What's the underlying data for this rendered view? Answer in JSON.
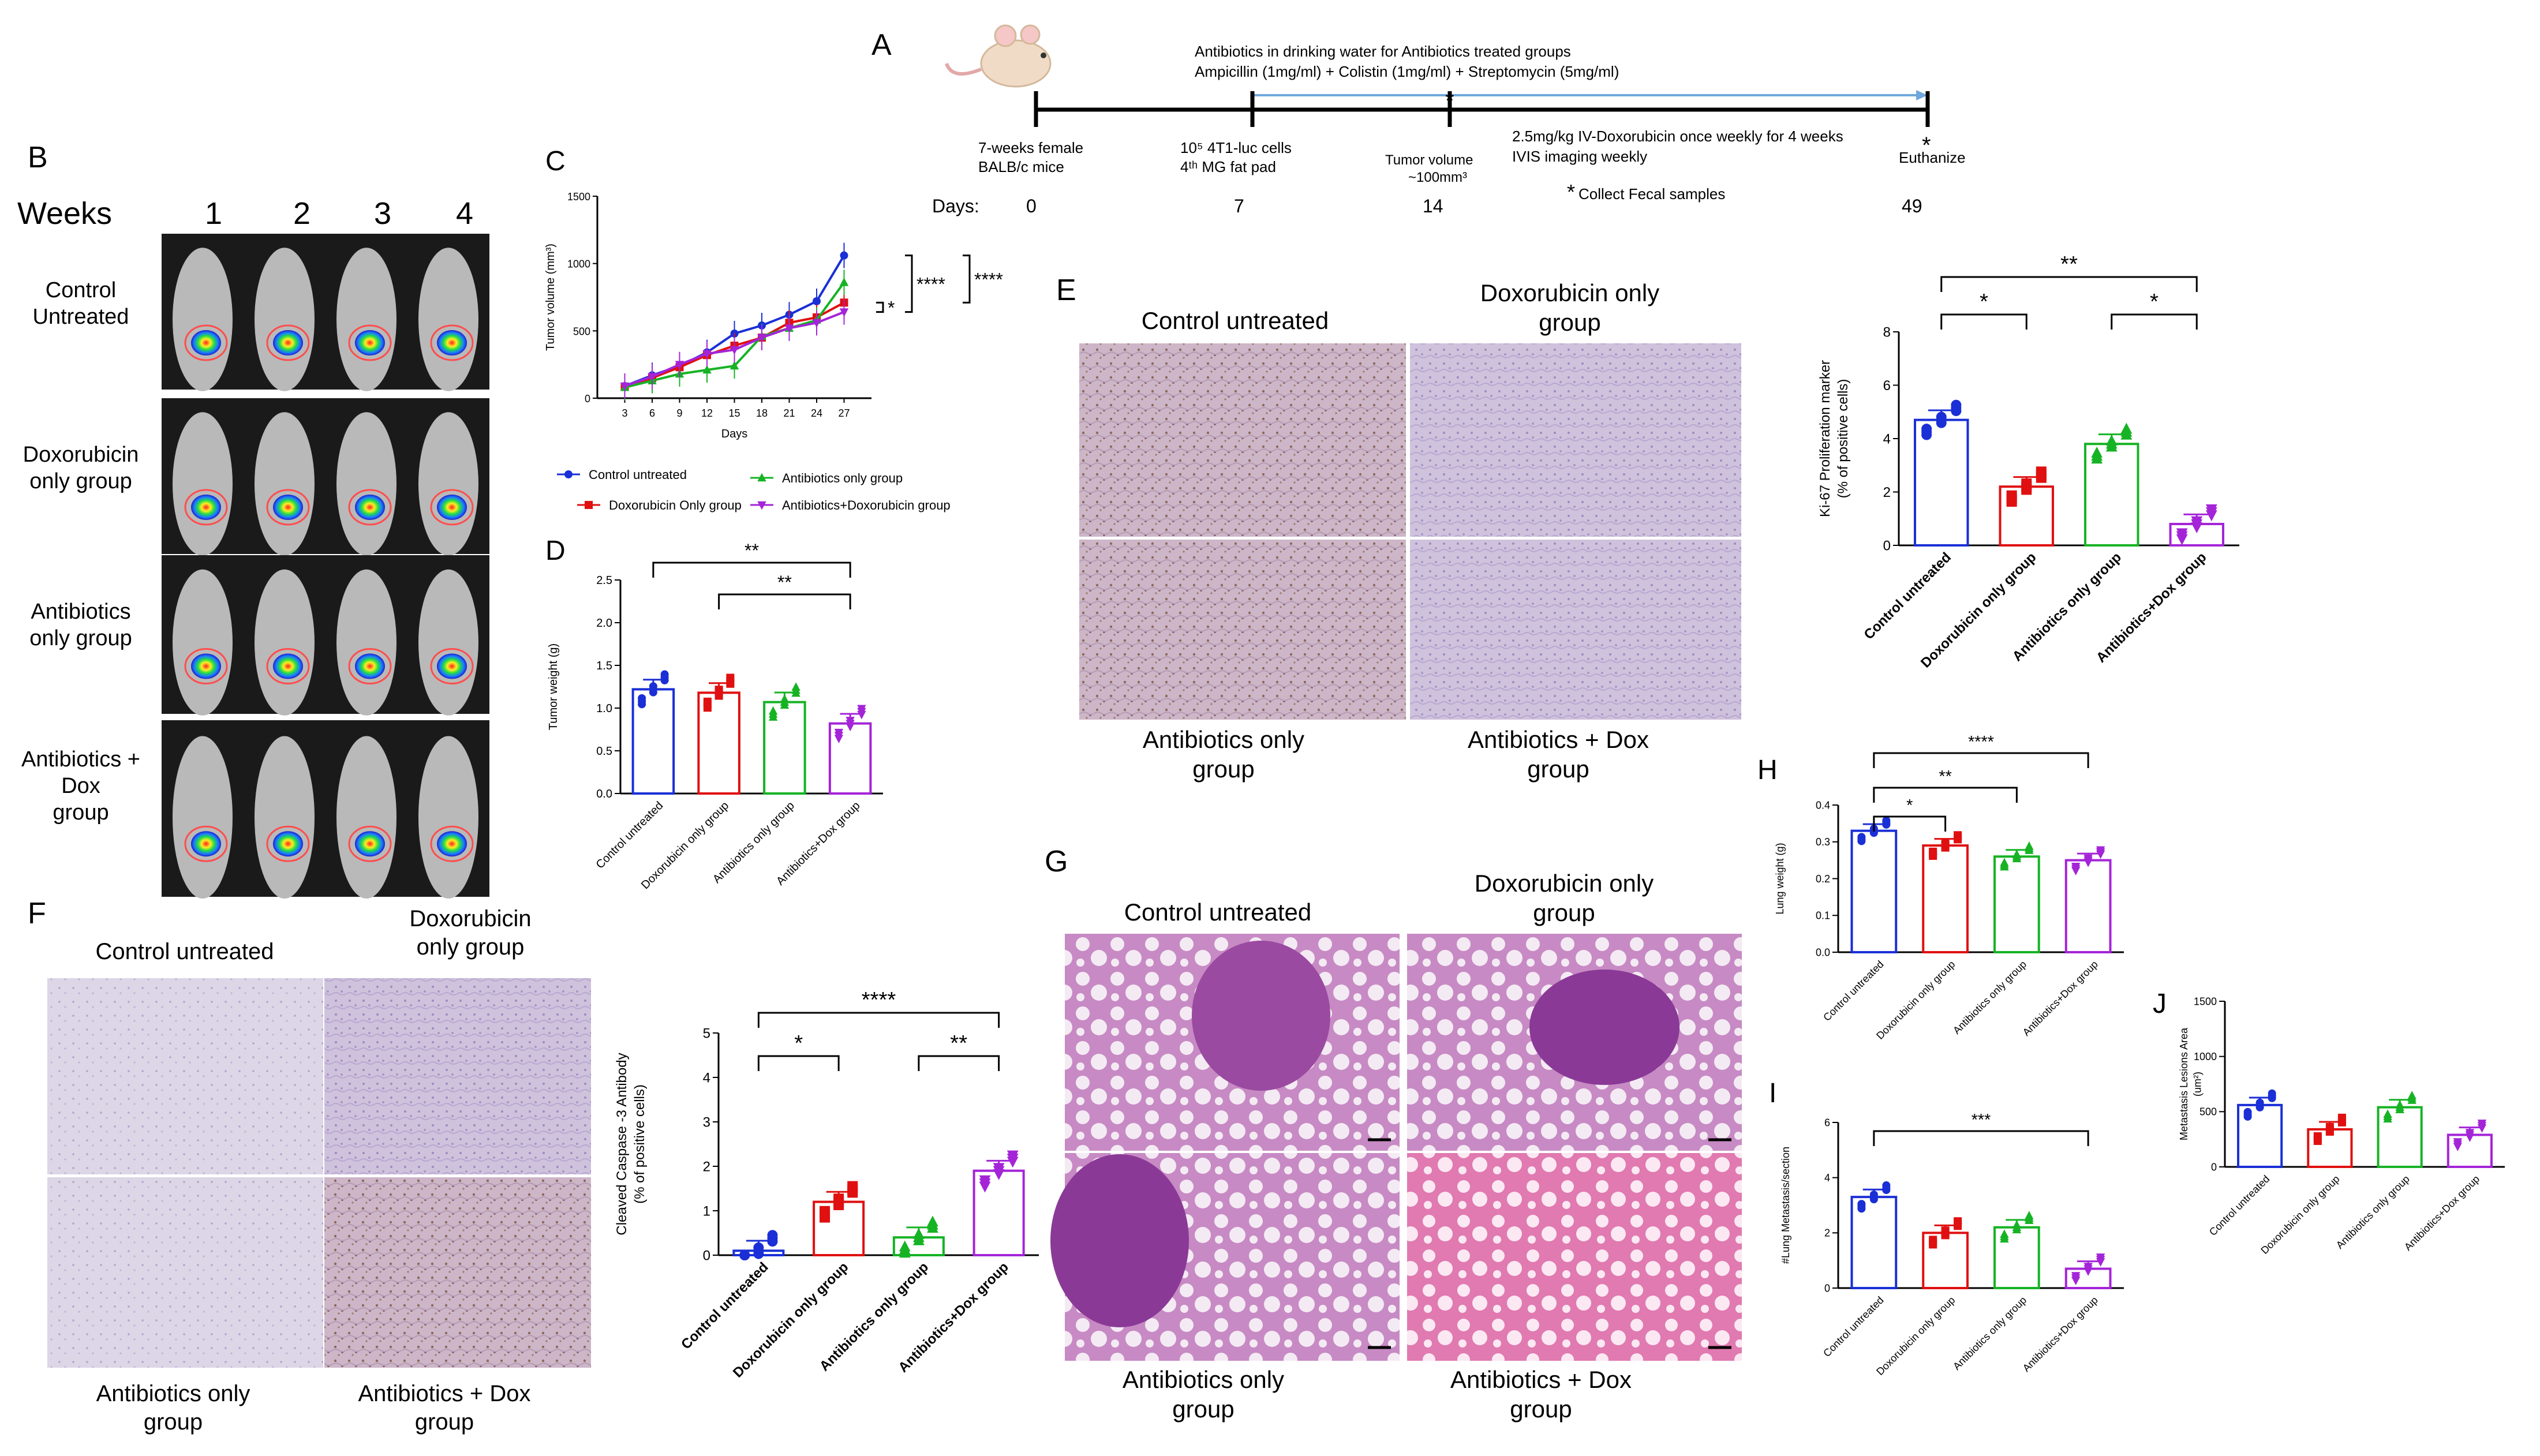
{
  "colors": {
    "control": "#1a2fd6",
    "dox": "#e01010",
    "abx": "#16b324",
    "combo": "#a424d8"
  },
  "groups_short": [
    "Control untreated",
    "Doxorubicin only group",
    "Antibiotics only group",
    "Antibiotics+Dox group"
  ],
  "panelA": {
    "letter": "A",
    "line1": "Antibiotics in drinking water for Antibiotics treated groups",
    "line2": "Ampicillin (1mg/ml) + Colistin (1mg/ml) + Streptomycin (5mg/ml)",
    "mice1": "7-weeks female",
    "mice2": "BALB/c mice",
    "cells1": "10⁵ 4T1-luc cells",
    "cells2": "4ᵗʰ MG fat pad",
    "tv1": "Tumor volume",
    "tv2": "~100mm³",
    "dox1": "2.5mg/kg IV-Doxorubicin once weekly for 4 weeks",
    "dox2": "IVIS imaging weekly",
    "fecal": "Collect Fecal samples",
    "euth": "Euthanize",
    "days_label": "Days:",
    "days": [
      "0",
      "7",
      "14",
      "49"
    ]
  },
  "panelB": {
    "letter": "B",
    "weeks_label": "Weeks",
    "weeks": [
      "1",
      "2",
      "3",
      "4"
    ],
    "rows": [
      "Control\nUntreated",
      "Doxorubicin\nonly group",
      "Antibiotics\nonly group",
      "Antibiotics +\nDox\ngroup"
    ]
  },
  "panelE_labels": {
    "letter": "E",
    "tl": "Control untreated",
    "tr": "Doxorubicin only\ngroup",
    "bl": "Antibiotics only\ngroup",
    "br": "Antibiotics + Dox\ngroup"
  },
  "panelF_labels": {
    "letter": "F",
    "tl": "Control untreated",
    "tr": "Doxorubicin\nonly group",
    "bl": "Antibiotics only\ngroup",
    "br": "Antibiotics + Dox\ngroup"
  },
  "panelG_labels": {
    "letter": "G",
    "tl": "Control untreated",
    "tr": "Doxorubicin only\ngroup",
    "bl": "Antibiotics only\ngroup",
    "br": "Antibiotics + Dox\ngroup"
  },
  "chart_data": [
    {
      "id": "C",
      "type": "line",
      "ylabel": "Tumor volume (mm³)",
      "xlabel": "Days",
      "x": [
        3,
        6,
        9,
        12,
        15,
        18,
        21,
        24,
        27
      ],
      "ylim": [
        0,
        1500
      ],
      "yticks": [
        0,
        500,
        1000,
        1500
      ],
      "series": [
        {
          "name": "Control untreated",
          "values": [
            90,
            170,
            240,
            340,
            480,
            540,
            620,
            720,
            1060
          ]
        },
        {
          "name": "Doxorubicin Only group",
          "values": [
            85,
            150,
            230,
            320,
            390,
            450,
            560,
            600,
            710
          ]
        },
        {
          "name": "Antibiotics only group",
          "values": [
            80,
            130,
            180,
            210,
            240,
            460,
            520,
            580,
            860
          ]
        },
        {
          "name": "Antibiotics+Doxorubicin group",
          "values": [
            90,
            160,
            250,
            330,
            360,
            450,
            520,
            560,
            640
          ]
        }
      ],
      "significance": [
        "*",
        "****",
        "****"
      ]
    },
    {
      "id": "D",
      "type": "bar",
      "ylabel": "Tumor weight (g)",
      "categories": [
        "Control untreated",
        "Doxorubicin only group",
        "Antibiotics only group",
        "Antibiotics+Dox group"
      ],
      "values": [
        1.22,
        1.18,
        1.07,
        0.82
      ],
      "ylim": [
        0,
        2.5
      ],
      "yticks": [
        "0.0",
        "0.5",
        "1.0",
        "1.5",
        "2.0",
        "2.5"
      ],
      "significance": [
        "**",
        "**"
      ]
    },
    {
      "id": "E",
      "type": "bar",
      "ylabel": "Ki-67 Proliferation marker\n(% of positive cells)",
      "categories": [
        "Control untreated",
        "Doxorubicin only group",
        "Antibiotics only group",
        "Antibiotics+Dox group"
      ],
      "values": [
        4.7,
        2.2,
        3.8,
        0.8
      ],
      "ylim": [
        0,
        8
      ],
      "yticks": [
        "0",
        "2",
        "4",
        "6",
        "8"
      ],
      "significance": [
        "*",
        "*",
        "**"
      ]
    },
    {
      "id": "F",
      "type": "bar",
      "ylabel": "Cleaved Caspase -3 Antibody\n(% of positive cells)",
      "categories": [
        "Control untreated",
        "Doxorubicin only group",
        "Antibiotics only group",
        "Antibiotics+Dox group"
      ],
      "values": [
        0.1,
        1.2,
        0.4,
        1.9
      ],
      "ylim": [
        0,
        5
      ],
      "yticks": [
        "0",
        "1",
        "2",
        "3",
        "4",
        "5"
      ],
      "significance": [
        "*",
        "**",
        "****"
      ]
    },
    {
      "id": "H",
      "type": "bar",
      "ylabel": "Lung weight (g)",
      "categories": [
        "Control untreated",
        "Doxorubicin only group",
        "Antibiotics only group",
        "Antibiotics+Dox group"
      ],
      "values": [
        0.33,
        0.29,
        0.26,
        0.25
      ],
      "ylim": [
        0,
        0.4
      ],
      "yticks": [
        "0.0",
        "0.1",
        "0.2",
        "0.3",
        "0.4"
      ],
      "significance": [
        "*",
        "**",
        "****"
      ]
    },
    {
      "id": "I",
      "type": "bar",
      "ylabel": "#Lung Metastasis/section",
      "categories": [
        "Control untreated",
        "Doxorubicin only group",
        "Antibiotics only group",
        "Antibiotics+Dox group"
      ],
      "values": [
        3.3,
        2.0,
        2.2,
        0.7
      ],
      "ylim": [
        0,
        6
      ],
      "yticks": [
        "0",
        "2",
        "4",
        "6"
      ],
      "significance": [
        "***"
      ]
    },
    {
      "id": "J",
      "type": "bar",
      "ylabel": "Metastasis Lesions Area\n(um²)",
      "categories": [
        "Control untreated",
        "Doxorubicin only group",
        "Antibiotics only group",
        "Antibiotics+Dox group"
      ],
      "values": [
        560,
        340,
        540,
        290
      ],
      "ylim": [
        0,
        1500
      ],
      "yticks": [
        "0",
        "500",
        "1000",
        "1500"
      ],
      "significance": []
    }
  ]
}
